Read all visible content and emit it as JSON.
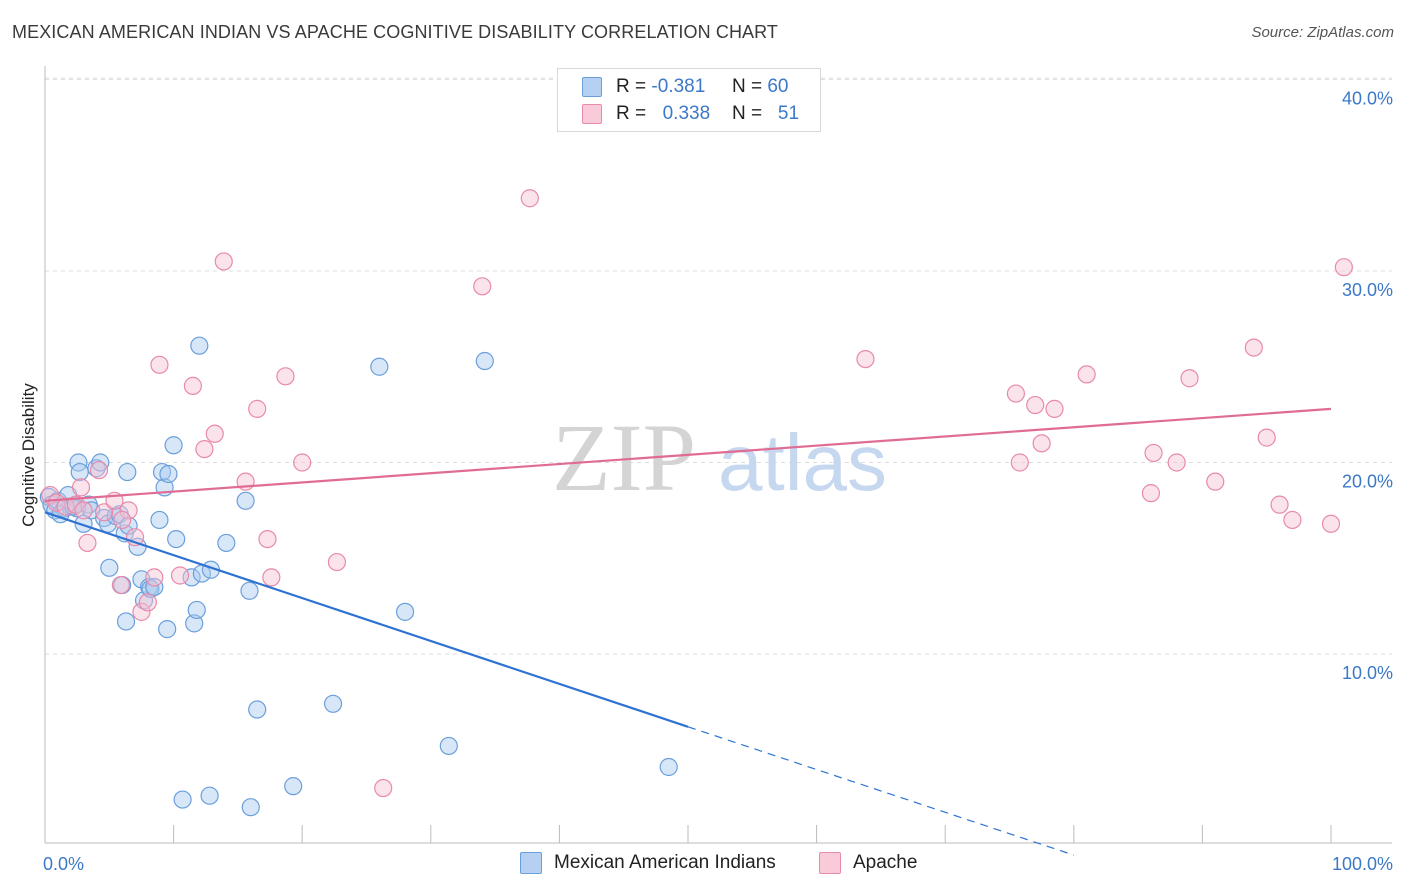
{
  "title": "MEXICAN AMERICAN INDIAN VS APACHE COGNITIVE DISABILITY CORRELATION CHART",
  "source": "Source: ZipAtlas.com",
  "legend": {
    "rows": [
      {
        "r_label": "R =",
        "r_value": "-0.381",
        "n_label": "N =",
        "n_value": "60"
      },
      {
        "r_label": "R =",
        "r_value": "0.338",
        "n_label": "N =",
        "n_value": "51"
      }
    ]
  },
  "watermark": {
    "part1": "ZIP",
    "part2": "atlas"
  },
  "colors": {
    "blue_fill": "#a9c9f0",
    "blue_stroke": "#6a9fdc",
    "blue_line": "#2f73d2",
    "pink_fill": "#f7c0d2",
    "pink_stroke": "#e88aaa",
    "pink_line": "#e06b94",
    "axis_text": "#3c78c8",
    "grid": "#dddddd"
  },
  "chart_data": {
    "type": "scatter",
    "title": "MEXICAN AMERICAN INDIAN VS APACHE COGNITIVE DISABILITY CORRELATION CHART",
    "xlabel": "",
    "ylabel": "Cognitive Disability",
    "xlim": [
      0,
      100
    ],
    "ylim": [
      0,
      41
    ],
    "x_tick_labels": [
      "0.0%",
      "100.0%"
    ],
    "y_ticks": [
      10,
      20,
      30,
      40
    ],
    "y_tick_labels": [
      "10.0%",
      "20.0%",
      "30.0%",
      "40.0%"
    ],
    "grid": true,
    "legend_position": "bottom",
    "series": [
      {
        "name": "Mexican American Indians",
        "r": -0.381,
        "n": 60,
        "trend": {
          "x0": 0.0,
          "y0": 17.4,
          "x1": 50.0,
          "y1": 6.2,
          "dash_to_x": 80.0,
          "dash_to_y": -0.5
        },
        "points": [
          [
            0.3,
            18.2
          ],
          [
            0.5,
            17.8
          ],
          [
            0.8,
            17.5
          ],
          [
            1.0,
            18.0
          ],
          [
            1.5,
            17.6
          ],
          [
            1.8,
            18.3
          ],
          [
            2.0,
            17.7
          ],
          [
            2.5,
            17.6
          ],
          [
            2.6,
            20.0
          ],
          [
            2.7,
            19.5
          ],
          [
            3.0,
            16.8
          ],
          [
            3.4,
            17.8
          ],
          [
            3.6,
            17.5
          ],
          [
            4.0,
            19.7
          ],
          [
            4.3,
            20.0
          ],
          [
            4.6,
            17.1
          ],
          [
            4.9,
            16.8
          ],
          [
            5.0,
            14.5
          ],
          [
            5.5,
            17.2
          ],
          [
            5.8,
            17.3
          ],
          [
            6.2,
            16.3
          ],
          [
            6.5,
            16.7
          ],
          [
            7.2,
            15.6
          ],
          [
            7.5,
            13.9
          ],
          [
            7.7,
            12.8
          ],
          [
            8.1,
            13.5
          ],
          [
            8.2,
            13.4
          ],
          [
            8.5,
            13.5
          ],
          [
            8.9,
            17.0
          ],
          [
            9.1,
            19.5
          ],
          [
            9.3,
            18.7
          ],
          [
            9.5,
            11.3
          ],
          [
            9.6,
            19.4
          ],
          [
            10.0,
            20.9
          ],
          [
            10.2,
            16.0
          ],
          [
            11.4,
            14.0
          ],
          [
            11.6,
            11.6
          ],
          [
            11.8,
            12.3
          ],
          [
            12.0,
            26.1
          ],
          [
            12.2,
            14.2
          ],
          [
            12.9,
            14.4
          ],
          [
            14.1,
            15.8
          ],
          [
            15.6,
            18.0
          ],
          [
            15.9,
            13.3
          ],
          [
            16.5,
            7.1
          ],
          [
            22.4,
            7.4
          ],
          [
            26.0,
            25.0
          ],
          [
            28.0,
            12.2
          ],
          [
            31.4,
            5.2
          ],
          [
            34.2,
            25.3
          ],
          [
            48.5,
            4.1
          ],
          [
            1.2,
            17.3
          ],
          [
            2.2,
            17.7
          ],
          [
            6.3,
            11.7
          ],
          [
            10.7,
            2.4
          ],
          [
            12.8,
            2.6
          ],
          [
            16.0,
            2.0
          ],
          [
            19.3,
            3.1
          ],
          [
            6.0,
            13.6
          ],
          [
            6.4,
            19.5
          ]
        ]
      },
      {
        "name": "Apache",
        "r": 0.338,
        "n": 51,
        "trend": {
          "x0": 0.0,
          "y0": 18.0,
          "x1": 100.0,
          "y1": 22.8
        },
        "points": [
          [
            0.4,
            18.3
          ],
          [
            0.9,
            17.9
          ],
          [
            1.6,
            17.7
          ],
          [
            2.4,
            17.8
          ],
          [
            2.8,
            18.7
          ],
          [
            3.3,
            15.8
          ],
          [
            4.2,
            19.6
          ],
          [
            4.6,
            17.4
          ],
          [
            5.4,
            18.0
          ],
          [
            5.9,
            13.6
          ],
          [
            6.5,
            17.5
          ],
          [
            7.0,
            16.1
          ],
          [
            7.5,
            12.2
          ],
          [
            8.0,
            12.7
          ],
          [
            8.9,
            25.1
          ],
          [
            10.5,
            14.1
          ],
          [
            11.5,
            24.0
          ],
          [
            12.4,
            20.7
          ],
          [
            13.2,
            21.5
          ],
          [
            13.9,
            30.5
          ],
          [
            15.6,
            19.0
          ],
          [
            16.5,
            22.8
          ],
          [
            17.3,
            16.0
          ],
          [
            17.6,
            14.0
          ],
          [
            18.7,
            24.5
          ],
          [
            20.0,
            20.0
          ],
          [
            22.7,
            14.8
          ],
          [
            26.3,
            3.0
          ],
          [
            34.0,
            29.2
          ],
          [
            37.7,
            33.8
          ],
          [
            63.8,
            25.4
          ],
          [
            75.5,
            23.6
          ],
          [
            75.8,
            20.0
          ],
          [
            77.0,
            23.0
          ],
          [
            77.5,
            21.0
          ],
          [
            78.5,
            22.8
          ],
          [
            81.0,
            24.6
          ],
          [
            86.0,
            18.4
          ],
          [
            86.2,
            20.5
          ],
          [
            88.0,
            20.0
          ],
          [
            89.0,
            24.4
          ],
          [
            91.0,
            19.0
          ],
          [
            94.0,
            26.0
          ],
          [
            95.0,
            21.3
          ],
          [
            96.0,
            17.8
          ],
          [
            97.0,
            17.0
          ],
          [
            100.0,
            16.8
          ],
          [
            101.0,
            30.2
          ],
          [
            3.0,
            17.5
          ],
          [
            6.0,
            17.0
          ],
          [
            8.5,
            14.0
          ]
        ]
      }
    ]
  },
  "bottom_legend": [
    "Mexican American Indians",
    "Apache"
  ]
}
